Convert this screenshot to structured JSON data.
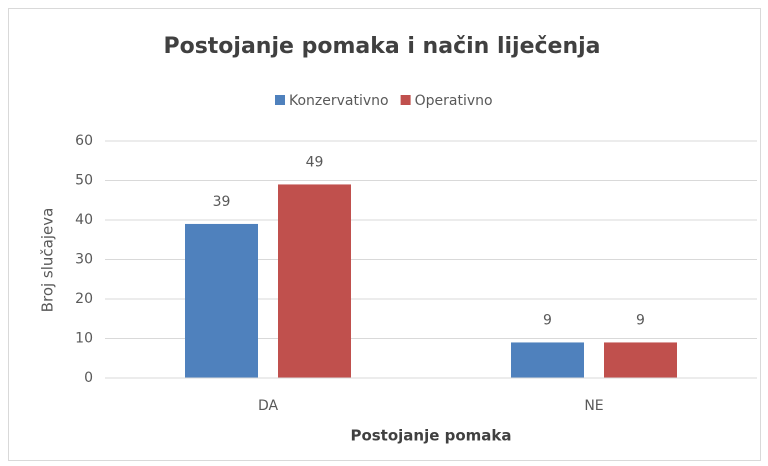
{
  "chart_data": {
    "type": "bar",
    "title": "Postojanje pomaka i način liječenja",
    "x_label": "Postojanje pomaka",
    "y_label": "Broj slučajeva",
    "categories": [
      "DA",
      "NE"
    ],
    "series": [
      {
        "name": "Konzervativno",
        "color": "#4f81bd",
        "values": [
          39,
          9
        ]
      },
      {
        "name": "Operativno",
        "color": "#c0504d",
        "values": [
          49,
          9
        ]
      }
    ],
    "ylim": [
      0,
      60
    ],
    "yticks": [
      0,
      10,
      20,
      30,
      40,
      50,
      60
    ],
    "grid": true,
    "legend": "top"
  }
}
